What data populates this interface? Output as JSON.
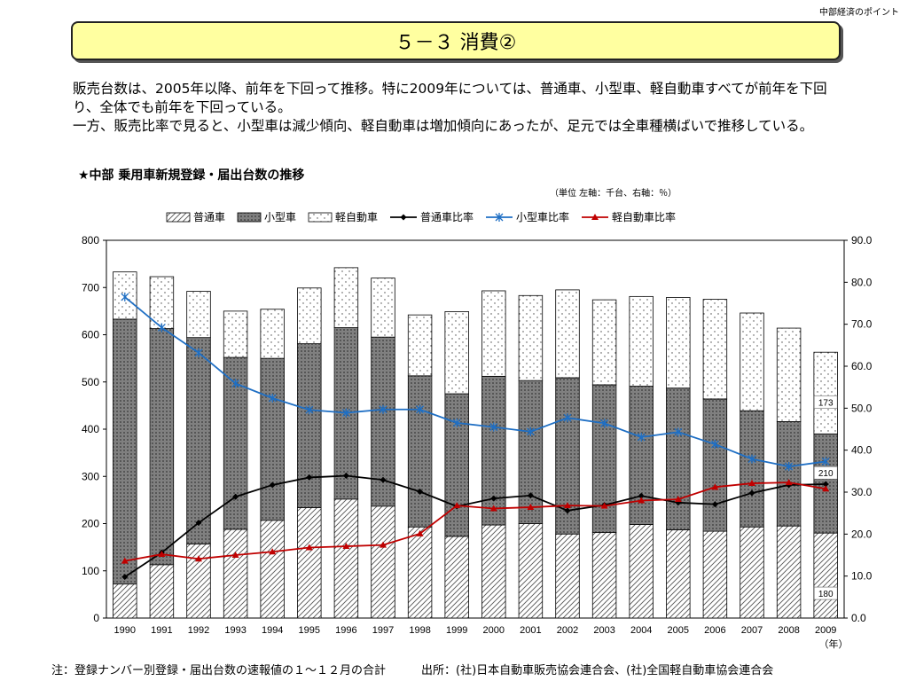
{
  "header": {
    "note": "中部経済のポイント"
  },
  "title": {
    "text": "５－３ 消費②"
  },
  "body": {
    "paragraph1": "販売台数は、2005年以降、前年を下回って推移。特に2009年については、普通車、小型車、軽自動車すべてが前年を下回り、全体でも前年を下回っている。",
    "paragraph2": "一方、販売比率で見ると、小型車は減少傾向、軽自動車は増加傾向にあったが、足元では全車種横ばいで推移している。"
  },
  "chart_heading": "★中部 乗用車新規登録・届出台数の推移",
  "unit_note": "（単位 左軸：千台、右軸：％）",
  "footnote": {
    "note": "注：登録ナンバー別登録・届出台数の速報値の１～１２月の合計",
    "source": "出所：(社)日本自動車販売協会連合会、(社)全国軽自動車協会連合会"
  },
  "chart_data": {
    "type": "bar+line",
    "categories": [
      "1990",
      "1991",
      "1992",
      "1993",
      "1994",
      "1995",
      "1996",
      "1997",
      "1998",
      "1999",
      "2000",
      "2001",
      "2002",
      "2003",
      "2004",
      "2005",
      "2006",
      "2007",
      "2008",
      "2009"
    ],
    "x_unit_label": "（年）",
    "y_left": {
      "min": 0,
      "max": 800,
      "ticks": [
        0,
        100,
        200,
        300,
        400,
        500,
        600,
        700,
        800
      ]
    },
    "y_right": {
      "min": 0,
      "max": 90,
      "ticks": [
        "0.0",
        "10.0",
        "20.0",
        "30.0",
        "40.0",
        "50.0",
        "60.0",
        "70.0",
        "80.0",
        "90.0"
      ]
    },
    "bar_series": [
      {
        "name": "普通車",
        "values": [
          72,
          113,
          157,
          188,
          207,
          234,
          252,
          237,
          193,
          173,
          197,
          200,
          178,
          181,
          198,
          187,
          184,
          193,
          195,
          180
        ]
      },
      {
        "name": "小型車",
        "values": [
          561,
          500,
          437,
          364,
          343,
          347,
          363,
          358,
          320,
          302,
          315,
          303,
          331,
          313,
          293,
          300,
          280,
          246,
          221,
          210
        ]
      },
      {
        "name": "軽自動車",
        "values": [
          100,
          110,
          98,
          98,
          104,
          118,
          127,
          125,
          129,
          174,
          181,
          180,
          186,
          180,
          190,
          192,
          211,
          207,
          198,
          173
        ]
      }
    ],
    "line_series": [
      {
        "name": "普通車比率",
        "color": "#000000",
        "values": [
          9.8,
          15.6,
          22.7,
          28.9,
          31.7,
          33.5,
          33.9,
          32.9,
          30.1,
          26.6,
          28.5,
          29.2,
          25.6,
          26.9,
          29.1,
          27.5,
          27.1,
          29.8,
          31.7,
          31.9
        ]
      },
      {
        "name": "小型車比率",
        "color": "#1f6fc4",
        "values": [
          76.5,
          69.2,
          63.2,
          55.9,
          52.4,
          49.6,
          48.9,
          49.7,
          49.7,
          46.5,
          45.5,
          44.4,
          47.7,
          46.4,
          43.1,
          44.3,
          41.4,
          37.9,
          36.1,
          37.3
        ]
      },
      {
        "name": "軽自動車比率",
        "color": "#c00000",
        "values": [
          13.6,
          15.2,
          14.1,
          15.0,
          15.8,
          16.8,
          17.1,
          17.4,
          20.1,
          26.8,
          26.1,
          26.4,
          26.8,
          26.7,
          28.0,
          28.3,
          31.2,
          32.1,
          32.3,
          30.8
        ]
      }
    ],
    "data_labels_2009": [
      "180",
      "210",
      "173"
    ],
    "legend": [
      "普通車",
      "小型車",
      "軽自動車",
      "普通車比率",
      "小型車比率",
      "軽自動車比率"
    ],
    "legend_position": "top",
    "grid": false
  }
}
